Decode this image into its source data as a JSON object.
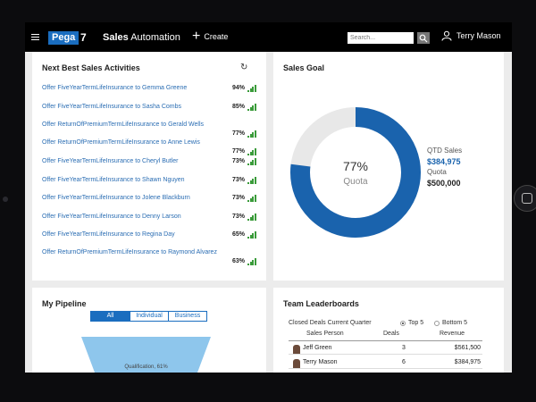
{
  "header": {
    "brand": "Pega",
    "version": "7",
    "app_name_bold": "Sales",
    "app_name_rest": " Automation",
    "create_label": "Create",
    "search_placeholder": "Search...",
    "user_name": "Terry Mason"
  },
  "next_best": {
    "title": "Next Best Sales Activities",
    "items": [
      {
        "text": "Offer FiveYearTermLifeInsurance to Gemma Greene",
        "pct": "94%"
      },
      {
        "text": "Offer FiveYearTermLifeInsurance to Sasha Combs",
        "pct": "85%"
      },
      {
        "text": "Offer ReturnOfPremiumTermLifeInsurance to Gerald Wells",
        "pct": "77%"
      },
      {
        "text": "Offer ReturnOfPremiumTermLifeInsurance to Anne Lewis",
        "pct": "77%"
      },
      {
        "text": "Offer FiveYearTermLifeInsurance to Cheryl Butler",
        "pct": "73%"
      },
      {
        "text": "Offer FiveYearTermLifeInsurance to Shawn Nguyen",
        "pct": "73%"
      },
      {
        "text": "Offer FiveYearTermLifeInsurance to Jolene Blackburn",
        "pct": "73%"
      },
      {
        "text": "Offer FiveYearTermLifeInsurance to Denny Larson",
        "pct": "73%"
      },
      {
        "text": "Offer FiveYearTermLifeInsurance to Regina Day",
        "pct": "65%"
      },
      {
        "text": "Offer ReturnOfPremiumTermLifeInsurance to Raymond Alvarez",
        "pct": "63%"
      }
    ]
  },
  "sales_goal": {
    "title": "Sales Goal",
    "percent_text": "77%",
    "percent_value": 0.77,
    "center_label": "Quota",
    "qtd_label": "QTD Sales",
    "qtd_value": "$384,975",
    "quota_label": "Quota",
    "quota_value": "$500,000",
    "ring_color": "#1a63ad",
    "track_color": "#e8e8e8"
  },
  "pipeline": {
    "title": "My Pipeline",
    "tabs": [
      "All",
      "Individual",
      "Business"
    ],
    "funnel_label": "Qualification, 61%"
  },
  "leaderboard": {
    "title": "Team Leaderboards",
    "subtitle": "Closed Deals Current Quarter",
    "option_top5": "Top 5",
    "option_bottom5": "Bottom 5",
    "columns": [
      "Sales Person",
      "Deals",
      "Revenue"
    ],
    "rows": [
      {
        "name": "Jeff Green",
        "deals": "3",
        "revenue": "$561,500"
      },
      {
        "name": "Terry Mason",
        "deals": "6",
        "revenue": "$384,975"
      }
    ]
  }
}
